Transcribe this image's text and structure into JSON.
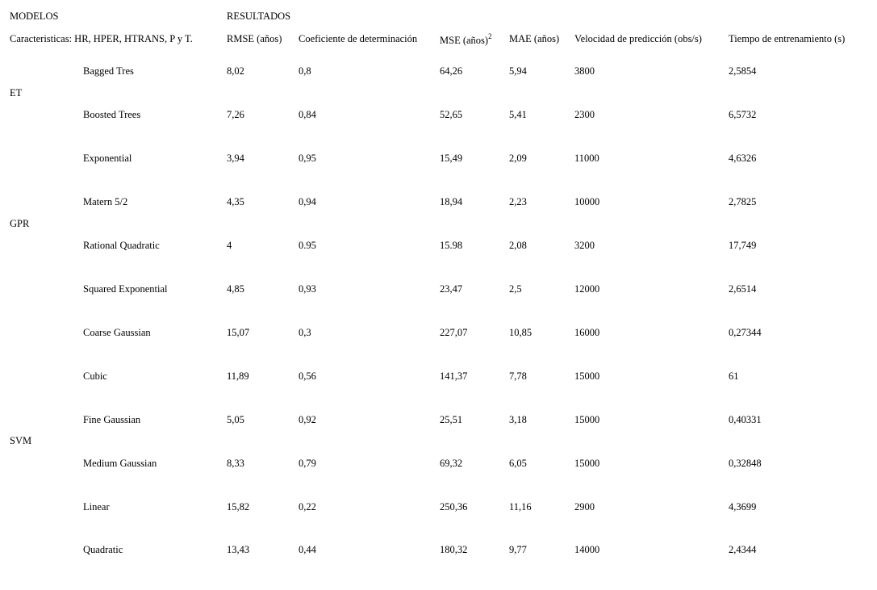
{
  "header": {
    "models_label": "MODELOS",
    "results_label": "RESULTADOS",
    "features_label": "Caracteristicas: HR, HPER, HTRANS, P y T.",
    "columns": {
      "rmse": "RMSE (años)",
      "r2": "Coeficiente de determinación",
      "mse": "MSE (años)",
      "mse_exp": "2",
      "mae": "MAE (años)",
      "speed": "Velocidad de predicción (obs/s)",
      "time": "Tiempo de entrenamiento (s)"
    }
  },
  "groups": [
    {
      "label": "ET"
    },
    {
      "label": "GPR"
    },
    {
      "label": "SVM"
    }
  ],
  "rows": [
    {
      "model": "Bagged Tres",
      "rmse": "8,02",
      "r2": "0,8",
      "mse": "64,26",
      "mae": "5,94",
      "speed": "3800",
      "time": "2,5854"
    },
    {
      "model": "Boosted Trees",
      "rmse": "7,26",
      "r2": "0,84",
      "mse": "52,65",
      "mae": "5,41",
      "speed": "2300",
      "time": "6,5732"
    },
    {
      "model": "Exponential",
      "rmse": "3,94",
      "r2": "0,95",
      "mse": "15,49",
      "mae": "2,09",
      "speed": "11000",
      "time": "4,6326"
    },
    {
      "model": "Matern 5/2",
      "rmse": "4,35",
      "r2": "0,94",
      "mse": "18,94",
      "mae": "2,23",
      "speed": "10000",
      "time": "2,7825"
    },
    {
      "model": "Rational Quadratic",
      "rmse": "4",
      "r2": "0.95",
      "mse": "15.98",
      "mae": "2,08",
      "speed": "3200",
      "time": "17,749"
    },
    {
      "model": "Squared Exponential",
      "rmse": "4,85",
      "r2": "0,93",
      "mse": "23,47",
      "mae": "2,5",
      "speed": "12000",
      "time": "2,6514"
    },
    {
      "model": "Coarse Gaussian",
      "rmse": "15,07",
      "r2": "0,3",
      "mse": "227,07",
      "mae": "10,85",
      "speed": "16000",
      "time": "0,27344"
    },
    {
      "model": "Cubic",
      "rmse": "11,89",
      "r2": "0,56",
      "mse": "141,37",
      "mae": "7,78",
      "speed": "15000",
      "time": "61"
    },
    {
      "model": "Fine Gaussian",
      "rmse": "5,05",
      "r2": "0,92",
      "mse": "25,51",
      "mae": "3,18",
      "speed": "15000",
      "time": "0,40331"
    },
    {
      "model": "Medium Gaussian",
      "rmse": "8,33",
      "r2": "0,79",
      "mse": "69,32",
      "mae": "6,05",
      "speed": "15000",
      "time": "0,32848"
    },
    {
      "model": "Linear",
      "rmse": "15,82",
      "r2": "0,22",
      "mse": "250,36",
      "mae": "11,16",
      "speed": "2900",
      "time": "4,3699"
    },
    {
      "model": "Quadratic",
      "rmse": "13,43",
      "r2": "0,44",
      "mse": "180,32",
      "mae": "9,77",
      "speed": "14000",
      "time": "2,4344"
    }
  ]
}
